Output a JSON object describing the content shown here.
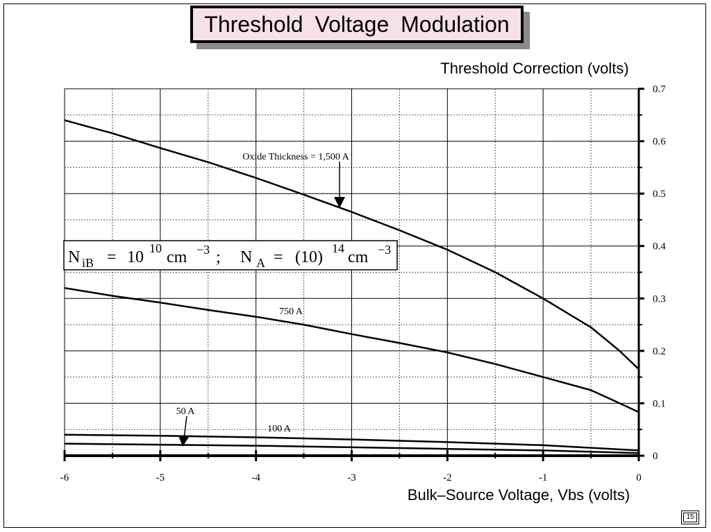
{
  "slide": {
    "title": "Threshold  Voltage  Modulation",
    "page_number": "15"
  },
  "chart_data": {
    "type": "line",
    "title": "Threshold  Voltage  Modulation",
    "xlabel": "Bulk–Source Voltage, Vbs (volts)",
    "ylabel": "Threshold Correction (volts)",
    "xlim": [
      -6,
      0
    ],
    "ylim": [
      0,
      0.7
    ],
    "x_ticks": [
      "-6",
      "-5",
      "-4",
      "-3",
      "-2",
      "-1",
      "0"
    ],
    "y_ticks": [
      "0",
      "0.1",
      "0.2",
      "0.3",
      "0.4",
      "0.5",
      "0.6",
      "0.7"
    ],
    "grid": true,
    "y_axis_position": "right",
    "series": [
      {
        "name": "Oxide Thickness = 1,500 A",
        "x": [
          -6,
          -5.5,
          -5,
          -4.5,
          -4,
          -3.5,
          -3,
          -2.5,
          -2,
          -1.5,
          -1,
          -0.5,
          -0.2,
          0
        ],
        "y": [
          0.64,
          0.615,
          0.587,
          0.56,
          0.53,
          0.498,
          0.465,
          0.43,
          0.393,
          0.35,
          0.3,
          0.245,
          0.2,
          0.165
        ]
      },
      {
        "name": "750 A",
        "x": [
          -6,
          -5.5,
          -5,
          -4.5,
          -4,
          -3.5,
          -3,
          -2.5,
          -2,
          -1.5,
          -1,
          -0.5,
          -0.2,
          0
        ],
        "y": [
          0.32,
          0.305,
          0.292,
          0.278,
          0.265,
          0.25,
          0.232,
          0.215,
          0.197,
          0.175,
          0.15,
          0.125,
          0.1,
          0.083
        ]
      },
      {
        "name": "100 A",
        "x": [
          -6,
          -5,
          -4,
          -3,
          -2,
          -1,
          0
        ],
        "y": [
          0.04,
          0.038,
          0.035,
          0.031,
          0.026,
          0.02,
          0.01
        ]
      },
      {
        "name": "50 A",
        "x": [
          -6,
          -5,
          -4,
          -3,
          -2,
          -1,
          0
        ],
        "y": [
          0.023,
          0.021,
          0.019,
          0.016,
          0.013,
          0.01,
          0.005
        ]
      }
    ],
    "annotations": [
      {
        "text": "Oxide Thickness = 1,500 A",
        "series": 0
      },
      {
        "text": "750 A",
        "series": 1
      },
      {
        "text": "100 A",
        "series": 2
      },
      {
        "text": "50 A",
        "series": 3
      }
    ],
    "formula": {
      "N": "N",
      "iB": "iB",
      "eq1": "=",
      "ten": "10",
      "exp1": "10",
      "cm1": "cm",
      "exp2": "−3",
      "semi": ";",
      "NA_N": "N",
      "NA_sub": "A",
      "eq2": "=",
      "paren": "(10)",
      "exp3": "14",
      "cm2": "cm",
      "exp4": "−3"
    }
  }
}
